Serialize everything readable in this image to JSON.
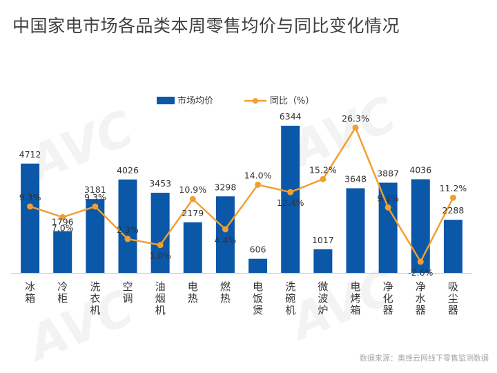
{
  "title": "中国家电市场各品类本周零售均价与同比变化情况",
  "source": "数据来源：奥维云网线下零售监测数据",
  "colors": {
    "bar": "#0B57A8",
    "line": "#F0A030",
    "axis": "#bfbfbf",
    "text": "#333333"
  },
  "chart_data": {
    "type": "bar",
    "title": "中国家电市场各品类本周零售均价与同比变化情况",
    "categories": [
      "冰箱",
      "冷柜",
      "洗衣机",
      "空调",
      "油烟机",
      "电热",
      "燃热",
      "电饭煲",
      "洗碗机",
      "微波炉",
      "电烤箱",
      "净化器",
      "净水器",
      "吸尘器"
    ],
    "series": [
      {
        "name": "市场均价",
        "type": "bar",
        "axis": "left",
        "values": [
          4712,
          1796,
          3181,
          4026,
          3453,
          2179,
          3298,
          606,
          6344,
          1017,
          3648,
          3887,
          4036,
          2288
        ],
        "labels": [
          "4712",
          "1796",
          "3181",
          "4026",
          "3453",
          "2179",
          "3298",
          "606",
          "6344",
          "1017",
          "3648",
          "3887",
          "4036",
          "2288"
        ]
      },
      {
        "name": "同比（%）",
        "type": "line",
        "axis": "right",
        "values": [
          9.3,
          7.0,
          9.3,
          2.3,
          1.0,
          10.9,
          4.4,
          14.0,
          12.4,
          15.2,
          26.3,
          9.1,
          -2.6,
          11.2
        ],
        "labels": [
          "9.3%",
          "7.0%",
          "9.3%",
          "2.3%",
          "1.0%",
          "10.9%",
          "4.4%",
          "14.0%",
          "12.4%",
          "15.2%",
          "26.3%",
          "9.1%",
          "-2.6%",
          "11.2%"
        ]
      }
    ],
    "ylim_left": [
      0,
      7000
    ],
    "ylim_right": [
      -5,
      30
    ],
    "legend": "top-center",
    "grid": false
  }
}
